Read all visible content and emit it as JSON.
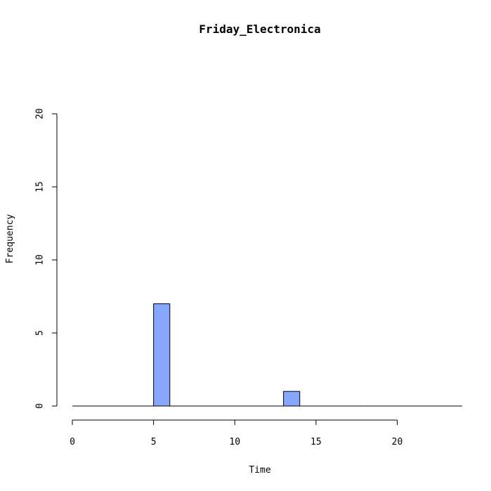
{
  "chart_data": {
    "type": "bar",
    "title": "Friday_Electronica",
    "xlabel": "Time",
    "ylabel": "Frequency",
    "xlim": [
      0,
      24
    ],
    "ylim": [
      0,
      20
    ],
    "x_ticks": [
      0,
      5,
      10,
      15,
      20
    ],
    "y_ticks": [
      0,
      5,
      10,
      15,
      20
    ],
    "bin_edges": [
      0,
      1,
      2,
      3,
      4,
      5,
      6,
      7,
      8,
      9,
      10,
      11,
      12,
      13,
      14,
      15,
      16,
      17,
      18,
      19,
      20,
      21,
      22,
      23,
      24
    ],
    "values": [
      0,
      0,
      0,
      0,
      0,
      7,
      0,
      0,
      0,
      0,
      0,
      0,
      0,
      1,
      0,
      0,
      0,
      0,
      0,
      0,
      0,
      0,
      0,
      0
    ],
    "bar_color": "#87A7FF",
    "grid": false
  }
}
